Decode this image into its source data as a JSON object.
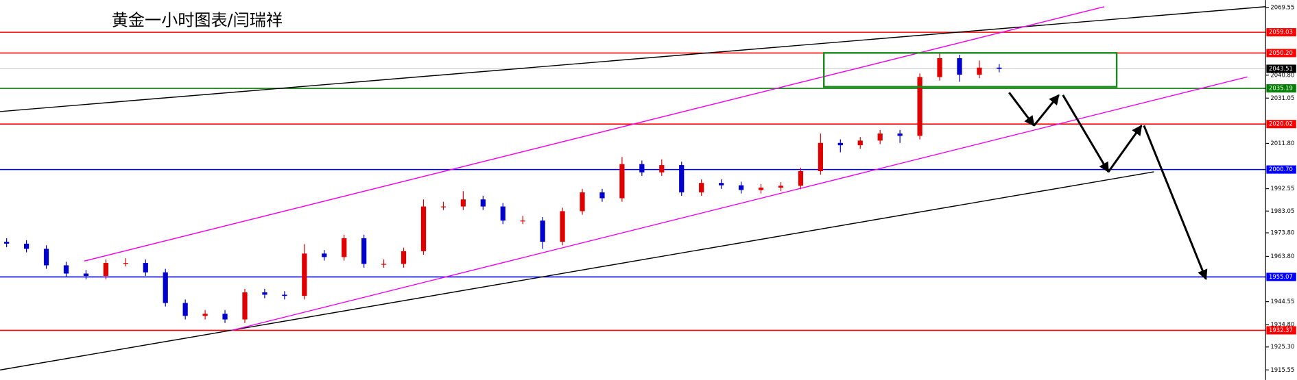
{
  "chart_data": {
    "type": "candlestick",
    "title": "黄金一小时图表/闫瑞祥",
    "ylim": [
      1911.3,
      2072.7
    ],
    "yticks": [
      2069.55,
      {
        "value": 2040.8,
        "label": "2040.80"
      },
      2031.05,
      {
        "value": 2011.8,
        "label": "2011.80"
      },
      1992.55,
      1983.05,
      {
        "value": 1973.8,
        "label": "1973.80"
      },
      {
        "value": 1963.8,
        "label": "1963.80"
      },
      1944.55,
      {
        "value": 1934.8,
        "label": "1934.80"
      },
      {
        "value": 1925.3,
        "label": "1925.30"
      },
      1915.55
    ],
    "up_color": "#e00000",
    "down_color": "#0000cc",
    "candles": [
      [
        1970,
        1971.5,
        1967.7,
        1969.2
      ],
      [
        1969.2,
        1970.7,
        1965.5,
        1967
      ],
      [
        1967,
        1968.5,
        1958.5,
        1960
      ],
      [
        1960,
        1961.5,
        1955,
        1956.5
      ],
      [
        1956.5,
        1958,
        1954,
        1955.5
      ],
      [
        1955.5,
        1962.5,
        1954,
        1961
      ],
      [
        1961,
        1963,
        1959.5,
        1961
      ],
      [
        1961,
        1962.5,
        1955.5,
        1957
      ],
      [
        1957,
        1958.5,
        1942.5,
        1944
      ],
      [
        1944,
        1945.5,
        1937,
        1938.5
      ],
      [
        1938.5,
        1941,
        1937,
        1939.4
      ],
      [
        1939.4,
        1941,
        1935.5,
        1937
      ],
      [
        1937,
        1950,
        1935.5,
        1948.5
      ],
      [
        1948.5,
        1950,
        1946,
        1947.5
      ],
      [
        1947.5,
        1949,
        1945.5,
        1947
      ],
      [
        1947,
        1969,
        1945.5,
        1965
      ],
      [
        1965,
        1966.5,
        1962,
        1963.5
      ],
      [
        1963.5,
        1973,
        1962,
        1971.5
      ],
      [
        1971.5,
        1973,
        1959,
        1960.6
      ],
      [
        1960.6,
        1962.5,
        1959,
        1960.6
      ],
      [
        1960.6,
        1967.5,
        1959,
        1966
      ],
      [
        1966,
        1988,
        1964.5,
        1985
      ],
      [
        1985,
        1987,
        1983.5,
        1985
      ],
      [
        1985,
        1991.5,
        1983.5,
        1988
      ],
      [
        1988,
        1989.5,
        1983.5,
        1985
      ],
      [
        1985,
        1986.5,
        1977.5,
        1979
      ],
      [
        1979,
        1981,
        1977.5,
        1979
      ],
      [
        1979,
        1980.5,
        1967,
        1970
      ],
      [
        1970,
        1984.5,
        1968.5,
        1983
      ],
      [
        1983,
        1992.5,
        1981.5,
        1991
      ],
      [
        1991,
        1992.5,
        1987,
        1988.5
      ],
      [
        1988.5,
        2006,
        1987,
        2003
      ],
      [
        2003,
        2004.5,
        1998,
        1999.5
      ],
      [
        1999.5,
        2005,
        1998,
        2002.6
      ],
      [
        2002.6,
        2004,
        1989.5,
        1991
      ],
      [
        1991,
        1996.5,
        1989.5,
        1995
      ],
      [
        1995,
        1996.5,
        1992.5,
        1994
      ],
      [
        1994,
        1995.5,
        1990.5,
        1992
      ],
      [
        1992,
        1994.5,
        1990.5,
        1993
      ],
      [
        1993,
        1995.3,
        1991.5,
        1993.8
      ],
      [
        1993.8,
        2001.5,
        1992.3,
        2000
      ],
      [
        2000,
        2016,
        1998.5,
        2012
      ],
      [
        2012,
        2013.5,
        2008,
        2011
      ],
      [
        2011,
        2014.5,
        2009.5,
        2013
      ],
      [
        2013,
        2017.5,
        2011.5,
        2016
      ],
      [
        2016,
        2017.5,
        2012,
        2015
      ],
      [
        2015,
        2041.5,
        2013.5,
        2040
      ],
      [
        2040,
        2050,
        2038.5,
        2048
      ],
      [
        2048,
        2049.5,
        2038,
        2041
      ],
      [
        2041,
        2047,
        2039.5,
        2044
      ],
      [
        2044,
        2045.5,
        2042,
        2043.5
      ]
    ],
    "current_price": 2043.51,
    "levels": [
      {
        "price": 2059.03,
        "color": "#ff0000"
      },
      {
        "price": {
          "value": 2050.2,
          "label": "2050.20"
        },
        "color": "#ff0000"
      },
      {
        "price": 2035.19,
        "color": "#008000"
      },
      {
        "price": 2020.02,
        "color": "#ff0000"
      },
      {
        "price": {
          "value": 2000.7,
          "label": "2000.70"
        },
        "color": "#0000ff"
      },
      {
        "price": 1955.07,
        "color": "#0000ff"
      },
      {
        "price": 1932.37,
        "color": "#ff0000"
      }
    ]
  }
}
